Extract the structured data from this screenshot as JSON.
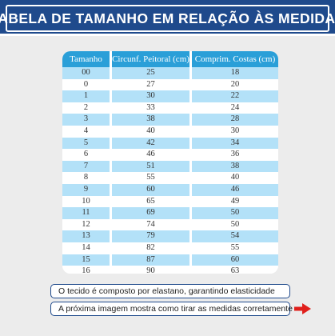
{
  "header": {
    "title": "TABELA DE TAMANHO EM RELAÇÃO ÀS MEDIDAS"
  },
  "table": {
    "headers": [
      "Tamanho",
      "Circunf. Peitoral (cm)",
      "Comprim. Costas (cm)"
    ],
    "rows": [
      [
        "00",
        "25",
        "18"
      ],
      [
        "0",
        "27",
        "20"
      ],
      [
        "1",
        "30",
        "22"
      ],
      [
        "2",
        "33",
        "24"
      ],
      [
        "3",
        "38",
        "28"
      ],
      [
        "4",
        "40",
        "30"
      ],
      [
        "5",
        "42",
        "34"
      ],
      [
        "6",
        "46",
        "36"
      ],
      [
        "7",
        "51",
        "38"
      ],
      [
        "8",
        "55",
        "40"
      ],
      [
        "9",
        "60",
        "46"
      ],
      [
        "10",
        "65",
        "49"
      ],
      [
        "11",
        "69",
        "50"
      ],
      [
        "12",
        "74",
        "50"
      ],
      [
        "13",
        "79",
        "54"
      ],
      [
        "14",
        "82",
        "55"
      ],
      [
        "15",
        "87",
        "60"
      ],
      [
        "16",
        "90",
        "63"
      ]
    ]
  },
  "notes": {
    "fabric": "O tecido é composto por elastano, garantindo elasticidade",
    "next_image": "A próxima imagem mostra como tirar as medidas corretamente"
  },
  "icons": {
    "next": "arrow-right-icon"
  },
  "colors": {
    "banner": "#1f4a8c",
    "table_header": "#2a9fd8",
    "row_stripe": "#b3e1f8",
    "arrow": "#e0201c"
  }
}
